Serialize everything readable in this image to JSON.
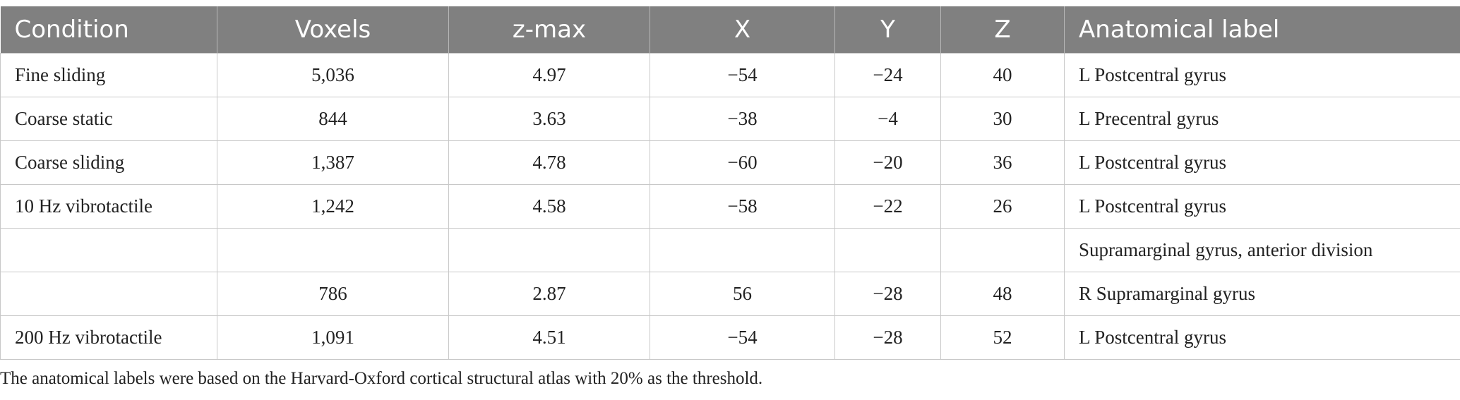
{
  "table": {
    "headers": [
      "Condition",
      "Voxels",
      "z-max",
      "X",
      "Y",
      "Z",
      "Anatomical label"
    ],
    "rows": [
      [
        "Fine sliding",
        "5,036",
        "4.97",
        "−54",
        "−24",
        "40",
        "L Postcentral gyrus"
      ],
      [
        "Coarse static",
        "844",
        "3.63",
        "−38",
        "−4",
        "30",
        "L Precentral gyrus"
      ],
      [
        "Coarse sliding",
        "1,387",
        "4.78",
        "−60",
        "−20",
        "36",
        "L Postcentral gyrus"
      ],
      [
        "10 Hz vibrotactile",
        "1,242",
        "4.58",
        "−58",
        "−22",
        "26",
        "L Postcentral gyrus"
      ],
      [
        "",
        "",
        "",
        "",
        "",
        "",
        "Supramarginal gyrus, anterior division"
      ],
      [
        "",
        "786",
        "2.87",
        "56",
        "−28",
        "48",
        "R Supramarginal gyrus"
      ],
      [
        "200 Hz vibrotactile",
        "1,091",
        "4.51",
        "−54",
        "−28",
        "52",
        "L Postcentral gyrus"
      ]
    ]
  },
  "footnote": "The anatomical labels were based on the Harvard-Oxford cortical structural atlas with 20% as the threshold.",
  "colors": {
    "header_bg": "#808080",
    "header_text": "#ffffff",
    "grid": "#c8c8c8"
  }
}
